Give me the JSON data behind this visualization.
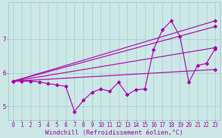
{
  "background_color": "#cce8e6",
  "grid_color": "#aacccc",
  "line_color": "#aa00aa",
  "marker": "D",
  "markersize": 2.2,
  "linewidth": 0.9,
  "xlabel": "Windchill (Refroidissement éolien,°C)",
  "xlabel_fontsize": 6.5,
  "tick_color": "#990099",
  "tick_fontsize": 5.5,
  "ylabel_ticks": [
    5,
    6,
    7
  ],
  "xlim": [
    -0.5,
    23.5
  ],
  "ylim": [
    4.6,
    8.1
  ],
  "series_zigzag": {
    "x": [
      0,
      1,
      2,
      3,
      4,
      5,
      6,
      7,
      8,
      9,
      10,
      11,
      12,
      13,
      14,
      15,
      16,
      17,
      18,
      19,
      20,
      21,
      22,
      23
    ],
    "y": [
      5.75,
      5.75,
      5.75,
      5.73,
      5.68,
      5.64,
      5.6,
      4.85,
      5.18,
      5.42,
      5.52,
      5.45,
      5.72,
      5.35,
      5.5,
      5.52,
      6.7,
      7.28,
      7.55,
      7.08,
      5.72,
      6.22,
      6.28,
      6.72
    ]
  },
  "series_lines": [
    {
      "x0": 0,
      "y0": 5.75,
      "x1": 23,
      "y1": 7.55
    },
    {
      "x0": 0,
      "y0": 5.75,
      "x1": 23,
      "y1": 7.38
    },
    {
      "x0": 0,
      "y0": 5.75,
      "x1": 23,
      "y1": 6.75
    },
    {
      "x0": 0,
      "y0": 5.75,
      "x1": 23,
      "y1": 6.1
    }
  ]
}
